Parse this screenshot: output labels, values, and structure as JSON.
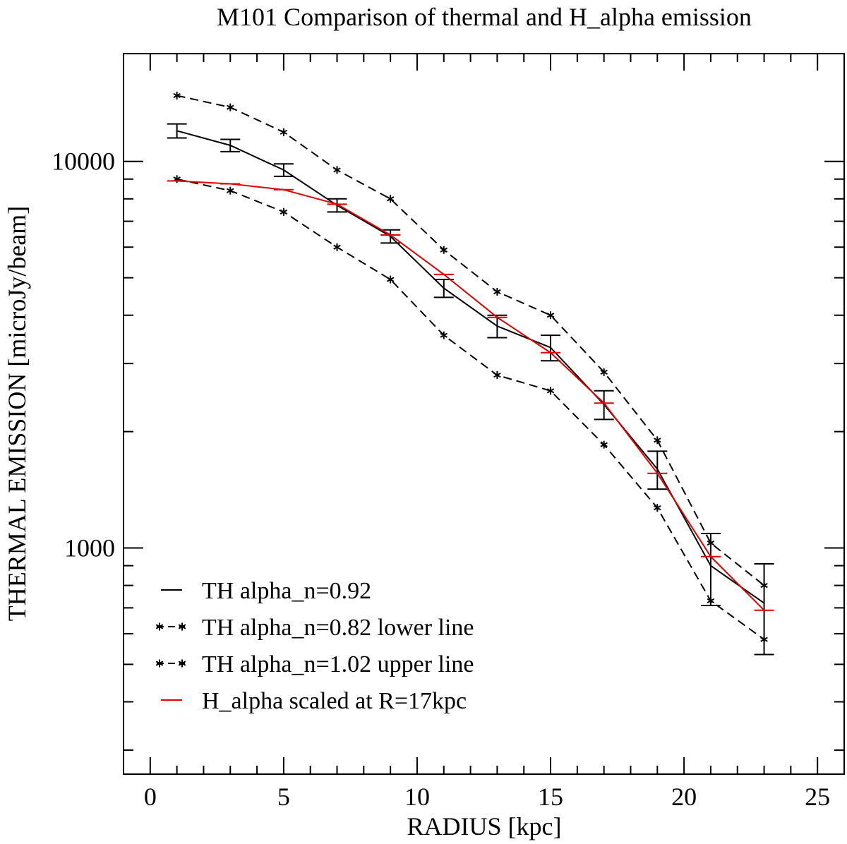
{
  "chart_data": {
    "type": "line",
    "title": "M101   Comparison  of thermal and H_alpha emission",
    "xlabel": "RADIUS     [kpc]",
    "ylabel": "THERMAL   EMISSION   [microJy/beam]",
    "xlim": [
      -1,
      26
    ],
    "ylim": [
      260,
      19000
    ],
    "yscale": "log",
    "x_ticks": [
      "0",
      "5",
      "10",
      "15",
      "20",
      "25"
    ],
    "y_ticks": [
      "1000",
      "10000"
    ],
    "legend_position": "bottom-left",
    "series": [
      {
        "name": "TH  alpha_n=0.92",
        "style": "solid",
        "color": "#000000",
        "x": [
          1,
          3,
          5,
          7,
          9,
          11,
          13,
          15,
          17,
          19,
          21,
          23
        ],
        "y": [
          12000,
          11000,
          9500,
          7700,
          6400,
          4700,
          3750,
          3300,
          2350,
          1600,
          900,
          720
        ],
        "err_low": [
          500,
          400,
          350,
          300,
          250,
          250,
          250,
          250,
          200,
          180,
          190,
          190
        ],
        "err_high": [
          500,
          400,
          350,
          300,
          250,
          250,
          250,
          250,
          200,
          180,
          190,
          190
        ]
      },
      {
        "name": "TH  alpha_n=0.82  lower line",
        "style": "dashed-stars",
        "color": "#000000",
        "x": [
          1,
          3,
          5,
          7,
          9,
          11,
          13,
          15,
          17,
          19,
          21,
          23
        ],
        "y": [
          9000,
          8400,
          7400,
          6000,
          4950,
          3550,
          2800,
          2550,
          1850,
          1270,
          730,
          580
        ]
      },
      {
        "name": "TH  alpha_n=1.02  upper line",
        "style": "dashed-stars",
        "color": "#000000",
        "x": [
          1,
          3,
          5,
          7,
          9,
          11,
          13,
          15,
          17,
          19,
          21,
          23
        ],
        "y": [
          14800,
          13800,
          11900,
          9500,
          8000,
          5900,
          4600,
          4000,
          2850,
          1900,
          1030,
          800
        ]
      },
      {
        "name": "H_alpha  scaled at R=17kpc",
        "style": "solid",
        "color": "#e00000",
        "x": [
          1,
          3,
          5,
          7,
          9,
          11,
          13,
          15,
          17,
          19,
          21,
          23
        ],
        "y": [
          8900,
          8750,
          8450,
          7750,
          6450,
          5100,
          3950,
          3200,
          2370,
          1560,
          950,
          690
        ]
      }
    ]
  }
}
